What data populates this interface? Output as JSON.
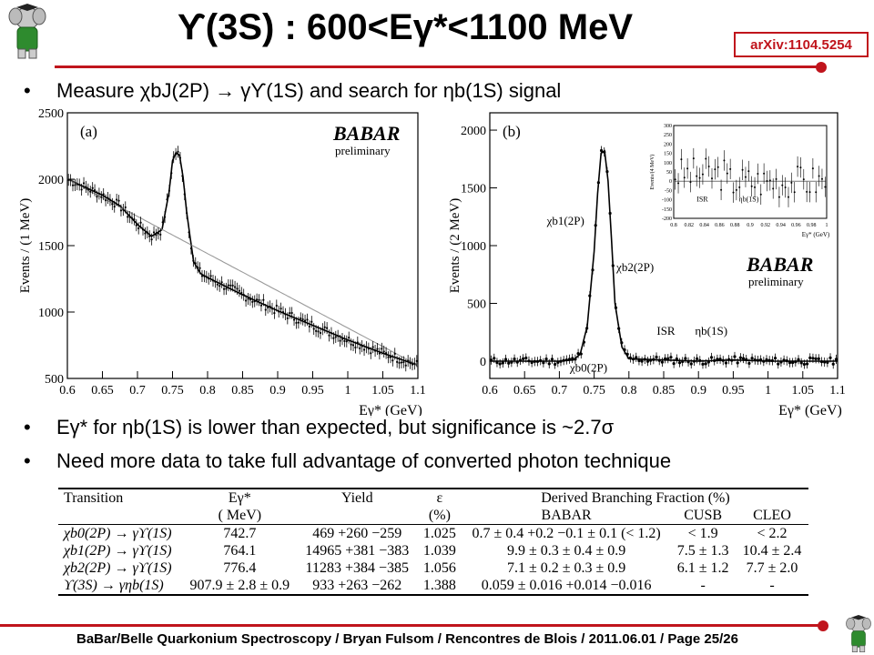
{
  "slide": {
    "title": "ϒ(3S) : 600<Eγ*<1100 MeV",
    "arxiv": "arXiv:1104.5254",
    "bullets": [
      "Measure χbJ(2P) → γϒ(1S) and search for ηb(1S) signal",
      "Eγ* for ηb(1S) is lower than expected, but significance is ~2.7σ",
      "Need more data to take full advantage of converted photon technique"
    ],
    "footer": "BaBar/Belle Quarkonium Spectroscopy  /  Bryan Fulsom  /  Rencontres de Blois  /  2011.06.01  /  Page 25/26",
    "colors": {
      "accent": "#c0141c"
    },
    "icons": [
      "babar-elephant-logo-icon",
      "babar-elephant-logo-icon"
    ]
  },
  "chart_data": [
    {
      "type": "scatter",
      "panel_label": "(a)",
      "logo_text": "BABAR",
      "logo_sub": "preliminary",
      "xlabel": "Eγ* (GeV)",
      "ylabel": "Events / (1 MeV)",
      "xlim": [
        0.6,
        1.1
      ],
      "ylim": [
        500,
        2500
      ],
      "xticks": [
        0.6,
        0.65,
        0.7,
        0.75,
        0.8,
        0.85,
        0.9,
        0.95,
        1,
        1.05,
        1.1
      ],
      "yticks": [
        500,
        1000,
        1500,
        2000,
        2500
      ],
      "series": [
        {
          "values_x": [
            0.6,
            0.625,
            0.65,
            0.675,
            0.7,
            0.72,
            0.735,
            0.745,
            0.75,
            0.755,
            0.76,
            0.765,
            0.77,
            0.78,
            0.79,
            0.8,
            0.85,
            0.9,
            0.95,
            1.0,
            1.05,
            1.1
          ],
          "values_y": [
            2000,
            1940,
            1880,
            1800,
            1660,
            1570,
            1620,
            1900,
            2140,
            2200,
            2180,
            2020,
            1760,
            1380,
            1290,
            1260,
            1130,
            1010,
            900,
            790,
            690,
            600
          ]
        },
        {
          "values_x": [
            0.6,
            1.1
          ],
          "values_y": [
            2000,
            600
          ]
        }
      ]
    },
    {
      "type": "scatter",
      "panel_label": "(b)",
      "logo_text": "BABAR",
      "logo_sub": "preliminary",
      "xlabel": "Eγ* (GeV)",
      "ylabel": "Events / (2 MeV)",
      "xlim": [
        0.6,
        1.1
      ],
      "ylim": [
        -150,
        2150
      ],
      "xticks": [
        0.6,
        0.65,
        0.7,
        0.75,
        0.8,
        0.85,
        0.9,
        0.95,
        1,
        1.05,
        1.1
      ],
      "yticks": [
        0,
        500,
        1000,
        1500,
        2000
      ],
      "annotations": [
        "χb1(2P)",
        "χb2(2P)",
        "χb0(2P)",
        "ISR",
        "ηb(1S)"
      ],
      "series": [
        {
          "values_x": [
            0.6,
            0.7,
            0.72,
            0.73,
            0.74,
            0.75,
            0.755,
            0.76,
            0.765,
            0.77,
            0.775,
            0.78,
            0.79,
            0.8,
            0.85,
            0.9,
            0.95,
            1.0,
            1.05,
            1.1
          ],
          "values_y": [
            0,
            0,
            10,
            60,
            300,
            950,
            1450,
            1800,
            1820,
            1560,
            1050,
            500,
            120,
            20,
            10,
            0,
            10,
            0,
            0,
            0
          ]
        }
      ],
      "inset": {
        "xlabel": "Eγ* (GeV)",
        "ylabel": "Events/(4 MeV)",
        "xlim": [
          0.8,
          1.0
        ],
        "ylim": [
          -200,
          300
        ],
        "xticks": [
          0.8,
          0.82,
          0.84,
          0.86,
          0.88,
          0.9,
          0.92,
          0.94,
          0.96,
          0.98,
          1
        ],
        "yticks": [
          -200,
          -150,
          -100,
          -50,
          0,
          50,
          100,
          150,
          200,
          250,
          300
        ],
        "annotations": [
          "ISR",
          "ηb(1S)"
        ]
      }
    }
  ],
  "table": {
    "headers": [
      "Transition",
      "Eγ*",
      "Yield",
      "ε",
      "Derived Branching Fraction (%)"
    ],
    "subheaders": [
      "",
      "( MeV)",
      "",
      "(%)",
      "BABAR",
      "CUSB",
      "CLEO"
    ],
    "rows": [
      [
        "χb0(2P) → γϒ(1S)",
        "742.7",
        "469 +260 −259",
        "1.025",
        "0.7 ± 0.4 +0.2 −0.1 ± 0.1 (< 1.2)",
        "< 1.9",
        "< 2.2"
      ],
      [
        "χb1(2P) → γϒ(1S)",
        "764.1",
        "14965 +381 −383",
        "1.039",
        "9.9 ± 0.3 ± 0.4 ± 0.9",
        "7.5 ± 1.3",
        "10.4 ± 2.4"
      ],
      [
        "χb2(2P) → γϒ(1S)",
        "776.4",
        "11283 +384 −385",
        "1.056",
        "7.1 ± 0.2 ± 0.3 ± 0.9",
        "6.1 ± 1.2",
        "7.7 ± 2.0"
      ],
      [
        "ϒ(3S) → γηb(1S)",
        "907.9 ± 2.8 ± 0.9",
        "933 +263 −262",
        "1.388",
        "0.059 ± 0.016 +0.014 −0.016",
        "-",
        "-"
      ]
    ]
  }
}
